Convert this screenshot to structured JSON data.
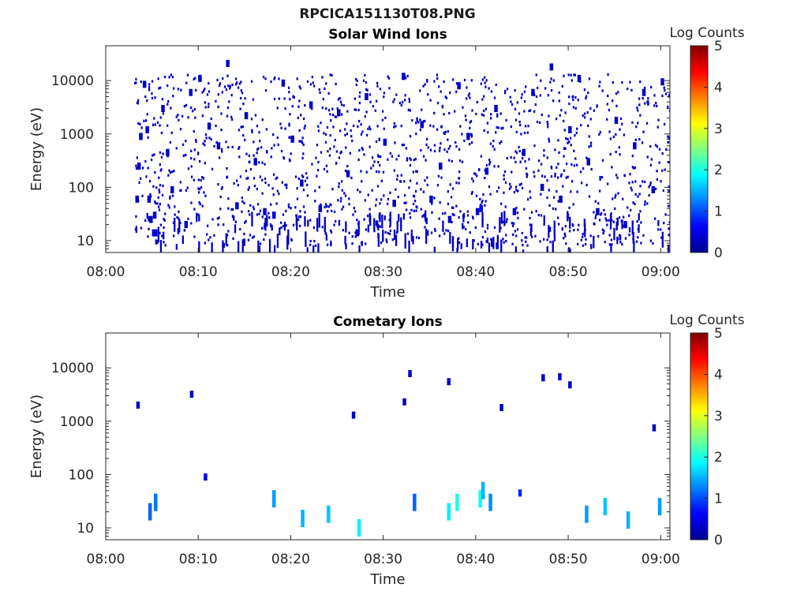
{
  "main_title": "RPCICA151130T08.PNG",
  "chart_data": [
    {
      "type": "heatmap",
      "title": "Solar Wind Ions",
      "xlabel": "Time",
      "ylabel": "Energy (eV)",
      "x_tick_labels": [
        "08:00",
        "08:10",
        "08:20",
        "08:30",
        "08:40",
        "08:50",
        "09:00"
      ],
      "x_range": [
        "08:00",
        "09:01"
      ],
      "y_scale": "log",
      "y_tick_labels": [
        "10",
        "100",
        "1000",
        "10000"
      ],
      "y_range": [
        6,
        45000
      ],
      "colorbar": {
        "label": "Log Counts",
        "range": [
          0,
          5
        ],
        "tick_labels": [
          "0",
          "1",
          "2",
          "3",
          "4",
          "5"
        ]
      },
      "grid": false,
      "data_start": "08:03",
      "data_end": "09:01",
      "cells": [
        {
          "t": "08:03.2",
          "e": 60,
          "v": 0.3
        },
        {
          "t": "08:03.4",
          "e": 250,
          "v": 0.3
        },
        {
          "t": "08:03.6",
          "e": 900,
          "v": 0.3
        },
        {
          "t": "08:04.0",
          "e": 8500,
          "v": 0.3
        },
        {
          "t": "08:04.3",
          "e": 1200,
          "v": 0.3
        },
        {
          "t": "08:04.5",
          "e": 60,
          "v": 0.3
        },
        {
          "t": "08:04.7",
          "e": 25,
          "v": 0.3
        },
        {
          "t": "08:05.0",
          "e": 14,
          "v": 0.4
        },
        {
          "t": "08:05.2",
          "e": 14,
          "v": 0.4
        },
        {
          "t": "08:05.1",
          "e": 30,
          "v": 0.3
        },
        {
          "t": "08:06.0",
          "e": 3000,
          "v": 0.3
        },
        {
          "t": "08:06.5",
          "e": 450,
          "v": 0.3
        },
        {
          "t": "08:07.0",
          "e": 90,
          "v": 0.3
        },
        {
          "t": "08:08.5",
          "e": 20,
          "v": 0.3
        },
        {
          "t": "08:09.0",
          "e": 6000,
          "v": 0.3
        },
        {
          "t": "08:10.0",
          "e": 11000,
          "v": 0.3
        },
        {
          "t": "08:11.0",
          "e": 1400,
          "v": 0.3
        },
        {
          "t": "08:12.0",
          "e": 600,
          "v": 0.3
        },
        {
          "t": "08:13.0",
          "e": 21000,
          "v": 0.3
        },
        {
          "t": "08:14.0",
          "e": 45,
          "v": 0.3
        },
        {
          "t": "08:15.0",
          "e": 2200,
          "v": 0.3
        },
        {
          "t": "08:16.0",
          "e": 300,
          "v": 0.3
        },
        {
          "t": "08:17.0",
          "e": 35,
          "v": 0.3
        },
        {
          "t": "08:18.0",
          "e": 30,
          "v": 0.4
        },
        {
          "t": "08:19.0",
          "e": 9000,
          "v": 0.3
        },
        {
          "t": "08:20.0",
          "e": 800,
          "v": 0.3
        },
        {
          "t": "08:21.0",
          "e": 120,
          "v": 0.3
        },
        {
          "t": "08:22.0",
          "e": 3500,
          "v": 0.3
        },
        {
          "t": "08:23.0",
          "e": 40,
          "v": 0.3
        },
        {
          "t": "08:25.0",
          "e": 2500,
          "v": 0.3
        },
        {
          "t": "08:26.0",
          "e": 180,
          "v": 0.3
        },
        {
          "t": "08:27.0",
          "e": 14,
          "v": 0.3
        },
        {
          "t": "08:28.0",
          "e": 5000,
          "v": 0.3
        },
        {
          "t": "08:30.0",
          "e": 700,
          "v": 0.3
        },
        {
          "t": "08:31.0",
          "e": 50,
          "v": 0.3
        },
        {
          "t": "08:32.0",
          "e": 12000,
          "v": 0.3
        },
        {
          "t": "08:34.0",
          "e": 1500,
          "v": 0.3
        },
        {
          "t": "08:35.0",
          "e": 60,
          "v": 0.3
        },
        {
          "t": "08:36.0",
          "e": 250,
          "v": 0.3
        },
        {
          "t": "08:37.0",
          "e": 25,
          "v": 0.3
        },
        {
          "t": "08:38.0",
          "e": 8000,
          "v": 0.3
        },
        {
          "t": "08:39.0",
          "e": 900,
          "v": 0.3
        },
        {
          "t": "08:40.0",
          "e": 35,
          "v": 0.4
        },
        {
          "t": "08:40.4",
          "e": 40,
          "v": 0.5
        },
        {
          "t": "08:41.0",
          "e": 200,
          "v": 0.3
        },
        {
          "t": "08:42.0",
          "e": 3000,
          "v": 0.3
        },
        {
          "t": "08:44.0",
          "e": 35,
          "v": 0.4
        },
        {
          "t": "08:45.0",
          "e": 450,
          "v": 0.3
        },
        {
          "t": "08:46.0",
          "e": 6000,
          "v": 0.3
        },
        {
          "t": "08:47.0",
          "e": 100,
          "v": 0.3
        },
        {
          "t": "08:48.0",
          "e": 18000,
          "v": 0.3
        },
        {
          "t": "08:49.0",
          "e": 60,
          "v": 0.3
        },
        {
          "t": "08:50.0",
          "e": 1200,
          "v": 0.3
        },
        {
          "t": "08:51.0",
          "e": 11000,
          "v": 0.3
        },
        {
          "t": "08:52.0",
          "e": 300,
          "v": 0.3
        },
        {
          "t": "08:53.0",
          "e": 35,
          "v": 0.3
        },
        {
          "t": "08:55.0",
          "e": 1800,
          "v": 0.3
        },
        {
          "t": "08:56.0",
          "e": 20,
          "v": 0.4
        },
        {
          "t": "08:57.0",
          "e": 600,
          "v": 0.3
        },
        {
          "t": "08:58.0",
          "e": 6000,
          "v": 0.3
        },
        {
          "t": "08:59.0",
          "e": 90,
          "v": 0.3
        },
        {
          "t": "09:00.0",
          "e": 9500,
          "v": 0.3
        }
      ]
    },
    {
      "type": "heatmap",
      "title": "Cometary Ions",
      "xlabel": "Time",
      "ylabel": "Energy (eV)",
      "x_tick_labels": [
        "08:00",
        "08:10",
        "08:20",
        "08:30",
        "08:40",
        "08:50",
        "09:00"
      ],
      "x_range": [
        "08:00",
        "09:01"
      ],
      "y_scale": "log",
      "y_tick_labels": [
        "10",
        "100",
        "1000",
        "10000"
      ],
      "y_range": [
        6,
        45000
      ],
      "colorbar": {
        "label": "Log Counts",
        "range": [
          0,
          5
        ],
        "tick_labels": [
          "0",
          "1",
          "2",
          "3",
          "4",
          "5"
        ]
      },
      "grid": false,
      "cells": [
        {
          "t": "08:03.3",
          "e": 2000,
          "v": 0.3
        },
        {
          "t": "08:09.1",
          "e": 3200,
          "v": 0.3
        },
        {
          "t": "08:26.6",
          "e": 1300,
          "v": 0.3
        },
        {
          "t": "08:32.1",
          "e": 2300,
          "v": 0.3
        },
        {
          "t": "08:32.7",
          "e": 7800,
          "v": 0.3
        },
        {
          "t": "08:36.9",
          "e": 5500,
          "v": 0.3
        },
        {
          "t": "08:42.6",
          "e": 1800,
          "v": 0.3
        },
        {
          "t": "08:47.1",
          "e": 6500,
          "v": 0.3
        },
        {
          "t": "08:48.9",
          "e": 6800,
          "v": 0.3
        },
        {
          "t": "08:50.0",
          "e": 4800,
          "v": 0.3
        },
        {
          "t": "08:59.1",
          "e": 750,
          "v": 0.3
        },
        {
          "t": "08:04.6",
          "e": 20,
          "v": 1.1
        },
        {
          "t": "08:05.2",
          "e": 30,
          "v": 1.2
        },
        {
          "t": "08:10.6",
          "e": 90,
          "v": 0.4
        },
        {
          "t": "08:18.0",
          "e": 35,
          "v": 1.4
        },
        {
          "t": "08:21.1",
          "e": 15,
          "v": 1.5
        },
        {
          "t": "08:23.9",
          "e": 18,
          "v": 1.6
        },
        {
          "t": "08:27.2",
          "e": 10,
          "v": 1.8
        },
        {
          "t": "08:33.2",
          "e": 30,
          "v": 1.1
        },
        {
          "t": "08:36.9",
          "e": 20,
          "v": 1.8
        },
        {
          "t": "08:37.8",
          "e": 30,
          "v": 2.0
        },
        {
          "t": "08:40.3",
          "e": 35,
          "v": 1.9
        },
        {
          "t": "08:40.6",
          "e": 50,
          "v": 1.5
        },
        {
          "t": "08:41.4",
          "e": 30,
          "v": 1.3
        },
        {
          "t": "08:44.6",
          "e": 45,
          "v": 0.8
        },
        {
          "t": "08:51.8",
          "e": 18,
          "v": 1.4
        },
        {
          "t": "08:53.8",
          "e": 25,
          "v": 1.6
        },
        {
          "t": "08:56.3",
          "e": 14,
          "v": 1.5
        },
        {
          "t": "08:59.7",
          "e": 25,
          "v": 1.4
        }
      ]
    }
  ]
}
